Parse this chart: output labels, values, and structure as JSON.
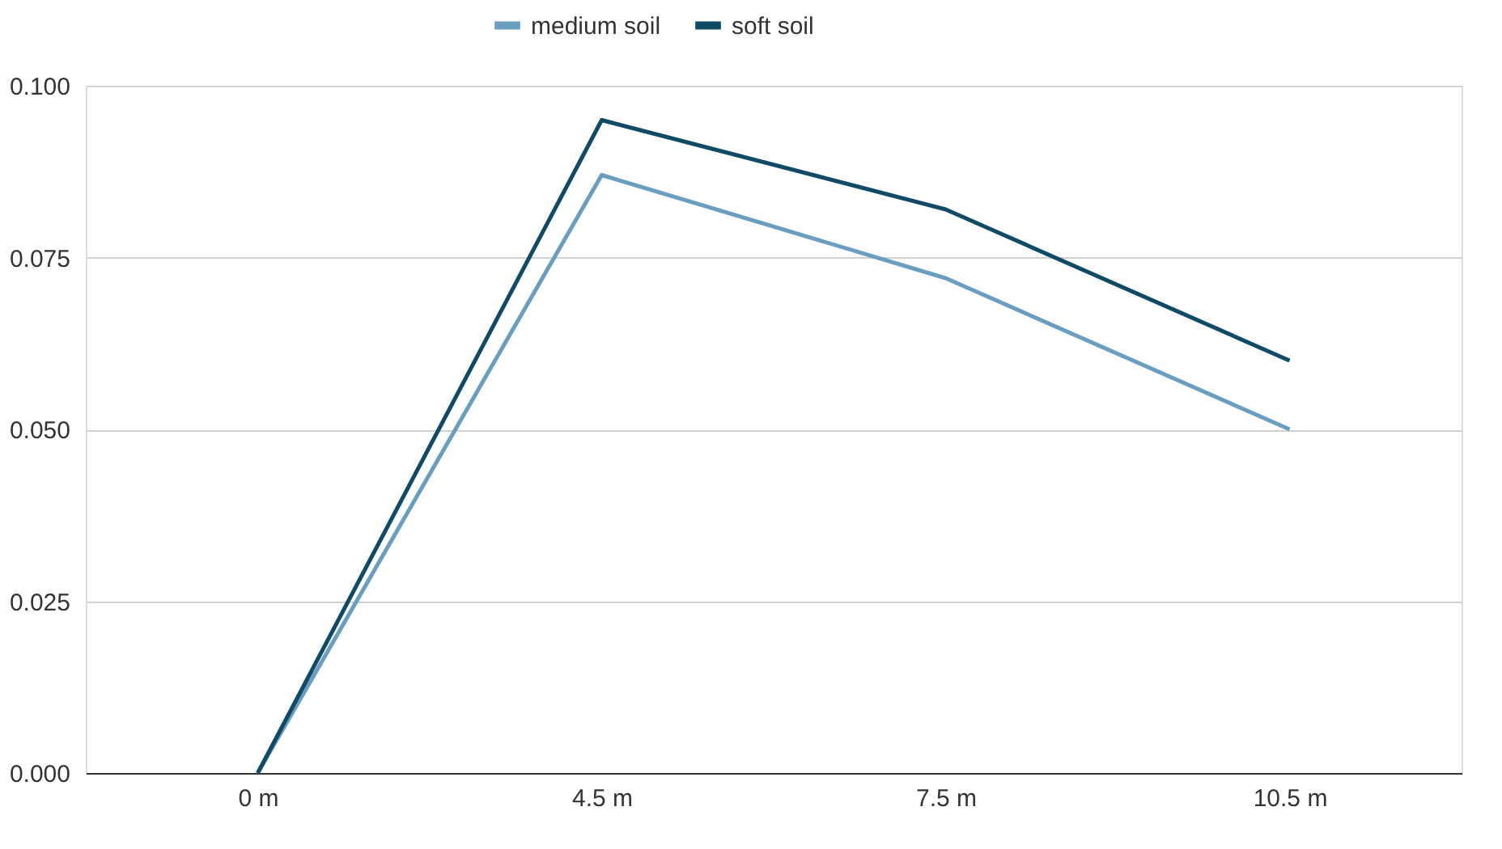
{
  "chart_data": {
    "type": "line",
    "categories": [
      "0 m",
      "4.5 m",
      "7.5 m",
      "10.5 m"
    ],
    "series": [
      {
        "name": "medium soil",
        "color": "#6a9ec0",
        "values": [
          0,
          0.087,
          0.072,
          0.05
        ]
      },
      {
        "name": "soft soil",
        "color": "#0f4a66",
        "values": [
          0,
          0.095,
          0.082,
          0.06
        ]
      }
    ],
    "ylim": [
      0,
      0.1
    ],
    "yticks": [
      {
        "value": 0,
        "label": "0.000"
      },
      {
        "value": 0.025,
        "label": "0.025"
      },
      {
        "value": 0.05,
        "label": "0.050"
      },
      {
        "value": 0.075,
        "label": "0.075"
      },
      {
        "value": 0.1,
        "label": "0.100"
      }
    ],
    "grid": "y",
    "legend": "top",
    "marker": "none",
    "line_style": "solid"
  }
}
